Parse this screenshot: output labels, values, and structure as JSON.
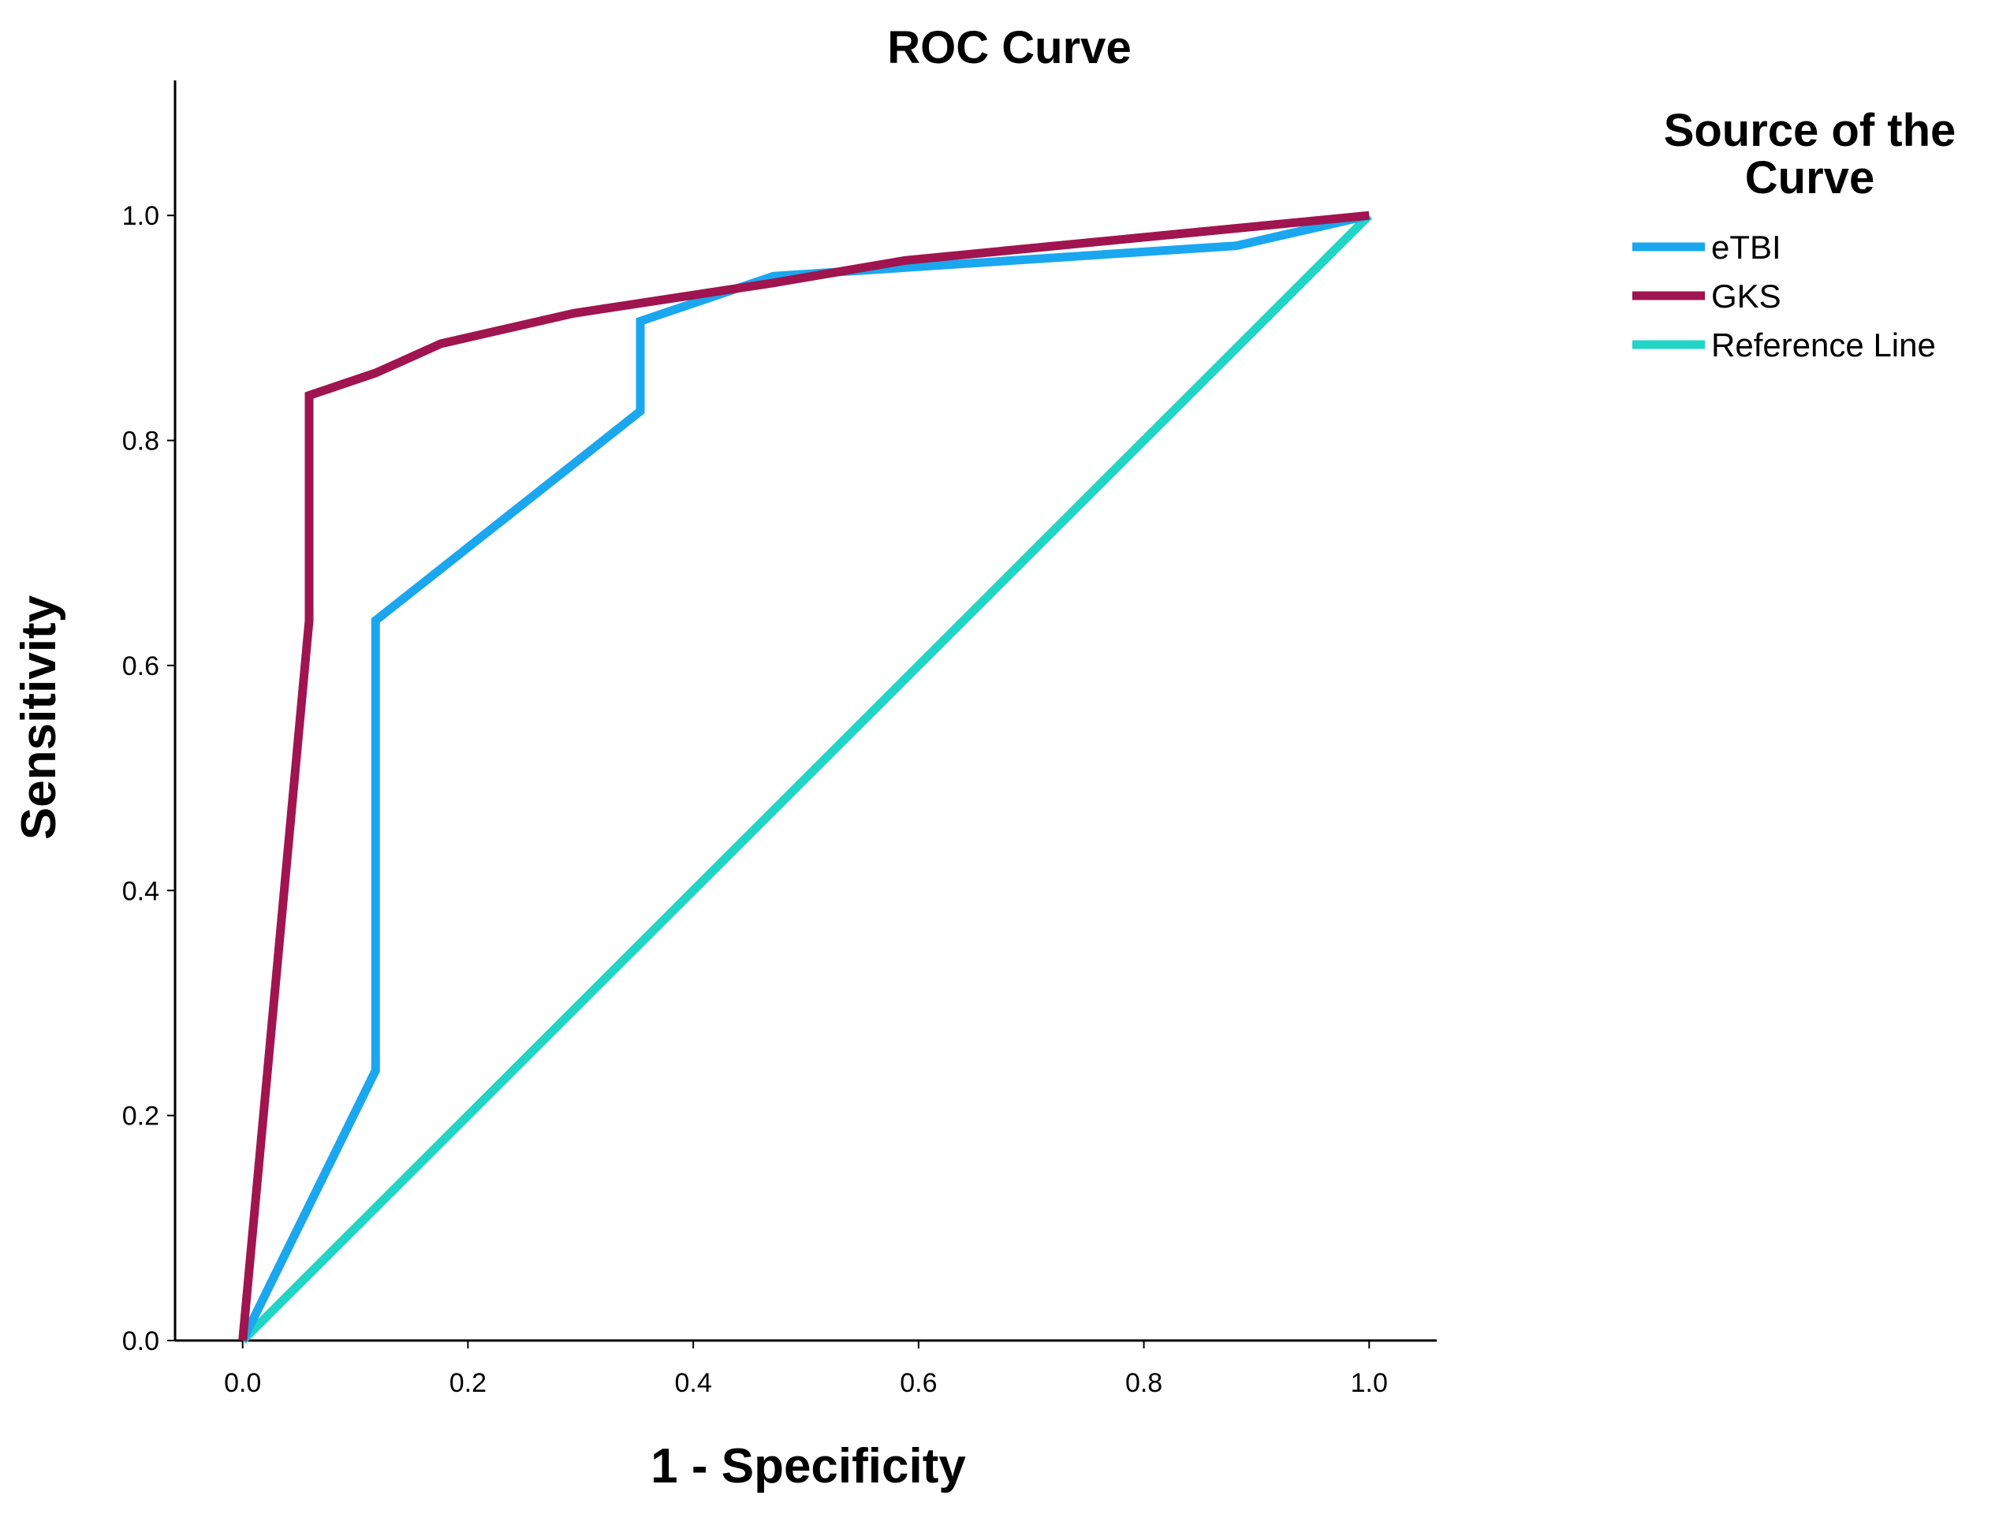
{
  "chart_data": {
    "type": "line",
    "title": "ROC Curve",
    "xlabel": "1 - Specificity",
    "ylabel": "Sensitivity",
    "xlim": [
      -0.06,
      1.06
    ],
    "ylim": [
      0,
      1.12
    ],
    "x_ticks": [
      {
        "value": 0.0,
        "label": "0.0"
      },
      {
        "value": 0.2,
        "label": "0.2"
      },
      {
        "value": 0.4,
        "label": "0.4"
      },
      {
        "value": 0.6,
        "label": "0.6"
      },
      {
        "value": 0.8,
        "label": "0.8"
      },
      {
        "value": 1.0,
        "label": "1.0"
      }
    ],
    "y_ticks": [
      {
        "value": 0.0,
        "label": "0.0"
      },
      {
        "value": 0.2,
        "label": "0.2"
      },
      {
        "value": 0.4,
        "label": "0.4"
      },
      {
        "value": 0.6,
        "label": "0.6"
      },
      {
        "value": 0.8,
        "label": "0.8"
      },
      {
        "value": 1.0,
        "label": "1.0"
      }
    ],
    "grid": false,
    "legend": {
      "title_lines": [
        "Source of the",
        "Curve"
      ],
      "position": "top-right"
    },
    "series": [
      {
        "name": "eTBI",
        "color": "#1aa7ef",
        "x": [
          0.0,
          0.118,
          0.118,
          0.353,
          0.353,
          0.471,
          0.882,
          1.0
        ],
        "y": [
          0.0,
          0.24,
          0.64,
          0.826,
          0.906,
          0.946,
          0.973,
          1.0
        ]
      },
      {
        "name": "GKS",
        "color": "#a0144f",
        "x": [
          0.0,
          0.059,
          0.059,
          0.118,
          0.176,
          0.294,
          0.471,
          0.588,
          1.0
        ],
        "y": [
          0.0,
          0.64,
          0.84,
          0.86,
          0.886,
          0.913,
          0.94,
          0.96,
          1.0
        ]
      },
      {
        "name": "Reference Line",
        "color": "#20d4c6",
        "x": [
          0.0,
          1.0
        ],
        "y": [
          0.0,
          1.0
        ]
      }
    ]
  }
}
